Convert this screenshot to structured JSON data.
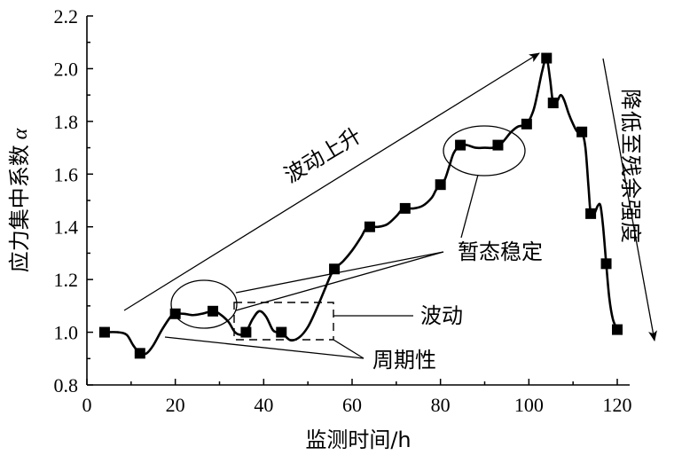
{
  "chart_data": {
    "type": "line",
    "xlabel": "监测时间/h",
    "ylabel_text": "应力集中系数",
    "ylabel_symbol": "α",
    "xlim": [
      0,
      120
    ],
    "ylim": [
      0.8,
      2.2
    ],
    "x_ticks": [
      0,
      20,
      40,
      60,
      80,
      100,
      120
    ],
    "y_ticks": [
      0.8,
      1.0,
      1.2,
      1.4,
      1.6,
      1.8,
      2.0,
      2.2
    ],
    "y_tick_labels": [
      "0.8",
      "1.0",
      "1.2",
      "1.4",
      "1.6",
      "1.8",
      "2.0",
      "2.2"
    ],
    "grid": false,
    "series": [
      {
        "marker": "square",
        "x": [
          4,
          12,
          20,
          28.5,
          36,
          44,
          56,
          64,
          72,
          80,
          84.5,
          93,
          99.5,
          104,
          105.5,
          112,
          114,
          117.5,
          120
        ],
        "y": [
          1.0,
          0.92,
          1.07,
          1.08,
          1.0,
          1.0,
          1.24,
          1.4,
          1.47,
          1.56,
          1.71,
          1.71,
          1.79,
          2.04,
          1.87,
          1.76,
          1.45,
          1.26,
          1.01
        ]
      }
    ],
    "curve_x": [
      4,
      7,
      9,
      10.5,
      12,
      13.5,
      15,
      17,
      19,
      20,
      22,
      24,
      26,
      28.5,
      30,
      32,
      33.5,
      35,
      36,
      37.5,
      39,
      40.5,
      42,
      43,
      44,
      46,
      48,
      50,
      52,
      54,
      55,
      56,
      58,
      60,
      62,
      63,
      64,
      66,
      68,
      70,
      71,
      72,
      74,
      76,
      78,
      79,
      80,
      81,
      82,
      83,
      84.5,
      86,
      88,
      90,
      92,
      93,
      94,
      95,
      96,
      97.5,
      99.5,
      101,
      102,
      103,
      104,
      104.8,
      105.5,
      106.5,
      107.2,
      108,
      109,
      110,
      111,
      112,
      112.8,
      113.5,
      114,
      114.8,
      115.6,
      116.2,
      116.8,
      117.5,
      118.2,
      119,
      120
    ],
    "curve_y": [
      1.0,
      1.0,
      0.99,
      0.95,
      0.92,
      0.92,
      0.95,
      1.01,
      1.06,
      1.07,
      1.07,
      1.065,
      1.07,
      1.08,
      1.07,
      1.04,
      1.0,
      0.99,
      1.0,
      1.05,
      1.08,
      1.06,
      1.01,
      1.0,
      1.0,
      0.97,
      0.98,
      1.02,
      1.09,
      1.17,
      1.21,
      1.24,
      1.27,
      1.31,
      1.36,
      1.39,
      1.4,
      1.4,
      1.41,
      1.44,
      1.46,
      1.47,
      1.47,
      1.48,
      1.51,
      1.54,
      1.56,
      1.58,
      1.63,
      1.68,
      1.71,
      1.71,
      1.7,
      1.7,
      1.7,
      1.71,
      1.72,
      1.74,
      1.76,
      1.78,
      1.79,
      1.84,
      1.91,
      1.99,
      2.04,
      1.96,
      1.87,
      1.88,
      1.9,
      1.88,
      1.83,
      1.79,
      1.76,
      1.76,
      1.7,
      1.55,
      1.45,
      1.45,
      1.48,
      1.48,
      1.4,
      1.26,
      1.13,
      1.05,
      1.01
    ],
    "annotations": {
      "rise": "波动上升",
      "fall": "降低至残余强度",
      "temporary_stable": "暂态稳定",
      "fluctuation": "波动",
      "periodicity": "周期性"
    }
  }
}
